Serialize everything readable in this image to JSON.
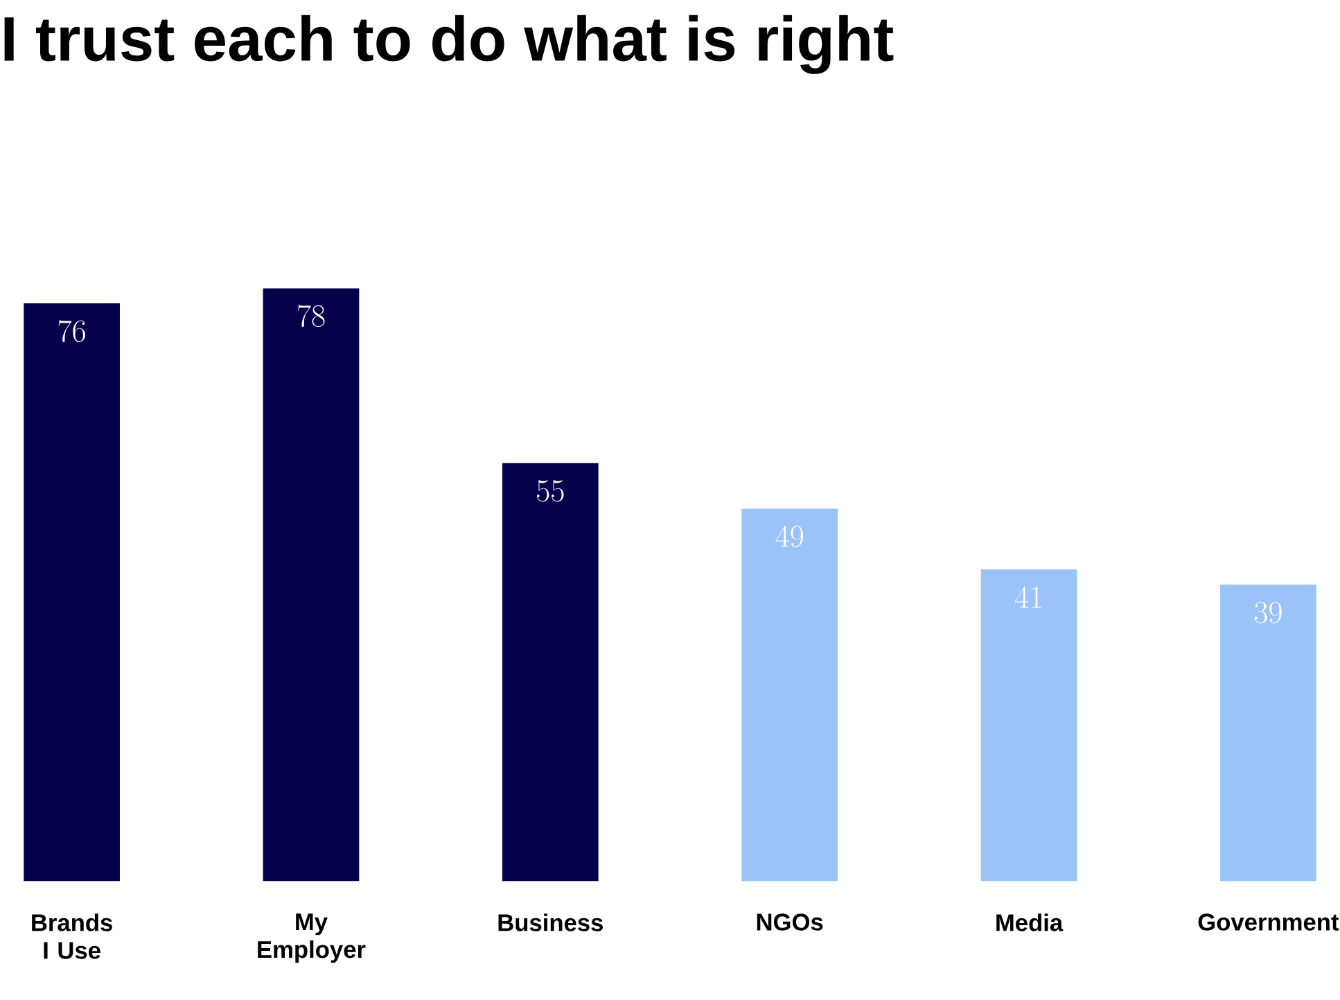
{
  "chart_data": {
    "type": "bar",
    "title": "I trust each to do what is right",
    "categories": [
      "Brands I Use",
      "My Employer",
      "Business",
      "NGOs",
      "Media",
      "Government"
    ],
    "values": [
      76,
      78,
      55,
      49,
      41,
      39
    ],
    "colors": [
      "#07004a",
      "#07004a",
      "#07004a",
      "#9bc3f8",
      "#9bc3f8",
      "#9bc3f8"
    ],
    "data_labels": true
  }
}
